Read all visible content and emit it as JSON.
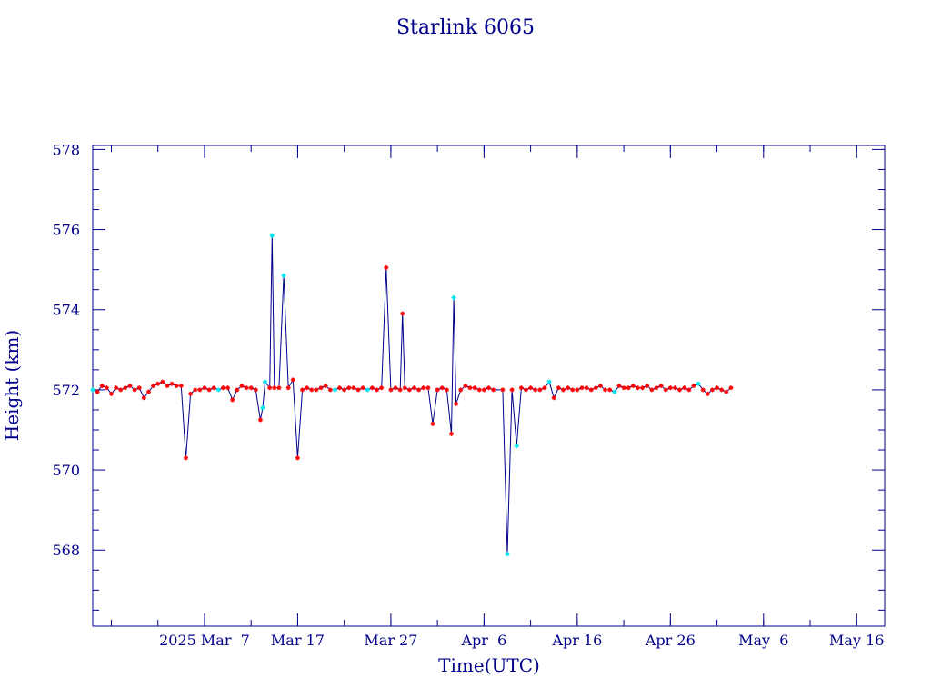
{
  "chart_data": {
    "type": "line",
    "title": "Starlink 6065",
    "xlabel": "Time(UTC)",
    "ylabel": "Height (km)",
    "x_is_days_offset": false,
    "x_ticks": [
      {
        "x": "2025-03-07",
        "label": "2025 Mar  7"
      },
      {
        "x": "2025-03-17",
        "label": "Mar 17"
      },
      {
        "x": "2025-03-27",
        "label": "Mar 27"
      },
      {
        "x": "2025-04-06",
        "label": "Apr  6"
      },
      {
        "x": "2025-04-16",
        "label": "Apr 16"
      },
      {
        "x": "2025-04-26",
        "label": "Apr 26"
      },
      {
        "x": "2025-05-06",
        "label": "May  6"
      },
      {
        "x": "2025-05-16",
        "label": "May 16"
      }
    ],
    "y_ticks": [
      568,
      570,
      572,
      574,
      576,
      578
    ],
    "xlim": [
      "2025-02-23",
      "2025-05-19"
    ],
    "ylim": [
      566.1,
      578.1
    ],
    "colors": {
      "axes": "#00008b",
      "line": "#00008b",
      "marker_red": "#ff0000",
      "marker_cyan": "#00e5ee"
    },
    "series": [
      {
        "values": [
          {
            "x": "2025-02-23T00:00",
            "y": 572.0,
            "m": "cyan"
          },
          {
            "x": "2025-02-23T12:00",
            "y": 571.95
          },
          {
            "x": "2025-02-24T00:00",
            "y": 572.1
          },
          {
            "x": "2025-02-24T12:00",
            "y": 572.05
          },
          {
            "x": "2025-02-25T00:00",
            "y": 571.9
          },
          {
            "x": "2025-02-25T12:00",
            "y": 572.05
          },
          {
            "x": "2025-02-26T00:00",
            "y": 572.0
          },
          {
            "x": "2025-02-26T12:00",
            "y": 572.05
          },
          {
            "x": "2025-02-27T00:00",
            "y": 572.1
          },
          {
            "x": "2025-02-27T12:00",
            "y": 572.0
          },
          {
            "x": "2025-02-28T00:00",
            "y": 572.05
          },
          {
            "x": "2025-02-28T12:00",
            "y": 571.8
          },
          {
            "x": "2025-03-01T00:00",
            "y": 571.95
          },
          {
            "x": "2025-03-01T12:00",
            "y": 572.1
          },
          {
            "x": "2025-03-02T00:00",
            "y": 572.15
          },
          {
            "x": "2025-03-02T12:00",
            "y": 572.2
          },
          {
            "x": "2025-03-03T00:00",
            "y": 572.1
          },
          {
            "x": "2025-03-03T12:00",
            "y": 572.15
          },
          {
            "x": "2025-03-04T00:00",
            "y": 572.1
          },
          {
            "x": "2025-03-04T12:00",
            "y": 572.1
          },
          {
            "x": "2025-03-05T00:00",
            "y": 570.3
          },
          {
            "x": "2025-03-05T12:00",
            "y": 571.9
          },
          {
            "x": "2025-03-06T00:00",
            "y": 572.0
          },
          {
            "x": "2025-03-06T12:00",
            "y": 572.0
          },
          {
            "x": "2025-03-07T00:00",
            "y": 572.05
          },
          {
            "x": "2025-03-07T12:00",
            "y": 572.0
          },
          {
            "x": "2025-03-08T00:00",
            "y": 572.05
          },
          {
            "x": "2025-03-08T12:00",
            "y": 572.0,
            "m": "cyan"
          },
          {
            "x": "2025-03-09T00:00",
            "y": 572.05
          },
          {
            "x": "2025-03-09T12:00",
            "y": 572.05
          },
          {
            "x": "2025-03-10T00:00",
            "y": 571.75
          },
          {
            "x": "2025-03-10T12:00",
            "y": 572.0
          },
          {
            "x": "2025-03-11T00:00",
            "y": 572.1
          },
          {
            "x": "2025-03-11T12:00",
            "y": 572.05
          },
          {
            "x": "2025-03-12T00:00",
            "y": 572.05
          },
          {
            "x": "2025-03-12T12:00",
            "y": 572.0
          },
          {
            "x": "2025-03-13T00:00",
            "y": 571.25
          },
          {
            "x": "2025-03-13T06:00",
            "y": 571.55,
            "m": "cyan"
          },
          {
            "x": "2025-03-13T12:00",
            "y": 572.2,
            "m": "cyan"
          },
          {
            "x": "2025-03-14T00:00",
            "y": 572.05
          },
          {
            "x": "2025-03-14T06:00",
            "y": 575.85,
            "m": "cyan"
          },
          {
            "x": "2025-03-14T12:00",
            "y": 572.05
          },
          {
            "x": "2025-03-15T00:00",
            "y": 572.05
          },
          {
            "x": "2025-03-15T12:00",
            "y": 574.85,
            "m": "cyan"
          },
          {
            "x": "2025-03-16T00:00",
            "y": 572.05
          },
          {
            "x": "2025-03-16T12:00",
            "y": 572.25
          },
          {
            "x": "2025-03-17T00:00",
            "y": 570.3
          },
          {
            "x": "2025-03-17T12:00",
            "y": 572.0
          },
          {
            "x": "2025-03-18T00:00",
            "y": 572.05
          },
          {
            "x": "2025-03-18T12:00",
            "y": 572.0
          },
          {
            "x": "2025-03-19T00:00",
            "y": 572.0
          },
          {
            "x": "2025-03-19T12:00",
            "y": 572.05
          },
          {
            "x": "2025-03-20T00:00",
            "y": 572.1
          },
          {
            "x": "2025-03-20T12:00",
            "y": 572.0
          },
          {
            "x": "2025-03-21T00:00",
            "y": 572.0,
            "m": "cyan"
          },
          {
            "x": "2025-03-21T12:00",
            "y": 572.05
          },
          {
            "x": "2025-03-22T00:00",
            "y": 572.0
          },
          {
            "x": "2025-03-22T12:00",
            "y": 572.05
          },
          {
            "x": "2025-03-23T00:00",
            "y": 572.05
          },
          {
            "x": "2025-03-23T12:00",
            "y": 572.0
          },
          {
            "x": "2025-03-24T00:00",
            "y": 572.05
          },
          {
            "x": "2025-03-24T12:00",
            "y": 572.0,
            "m": "cyan"
          },
          {
            "x": "2025-03-25T00:00",
            "y": 572.05
          },
          {
            "x": "2025-03-25T12:00",
            "y": 572.0
          },
          {
            "x": "2025-03-26T00:00",
            "y": 572.05
          },
          {
            "x": "2025-03-26T12:00",
            "y": 575.05
          },
          {
            "x": "2025-03-27T00:00",
            "y": 572.0
          },
          {
            "x": "2025-03-27T12:00",
            "y": 572.05
          },
          {
            "x": "2025-03-28T00:00",
            "y": 572.0
          },
          {
            "x": "2025-03-28T06:00",
            "y": 573.9
          },
          {
            "x": "2025-03-28T12:00",
            "y": 572.05
          },
          {
            "x": "2025-03-29T00:00",
            "y": 572.0
          },
          {
            "x": "2025-03-29T12:00",
            "y": 572.05
          },
          {
            "x": "2025-03-30T00:00",
            "y": 572.0
          },
          {
            "x": "2025-03-30T12:00",
            "y": 572.05
          },
          {
            "x": "2025-03-31T00:00",
            "y": 572.05
          },
          {
            "x": "2025-03-31T12:00",
            "y": 571.15
          },
          {
            "x": "2025-04-01T00:00",
            "y": 572.0
          },
          {
            "x": "2025-04-01T12:00",
            "y": 572.05
          },
          {
            "x": "2025-04-02T00:00",
            "y": 572.0
          },
          {
            "x": "2025-04-02T12:00",
            "y": 570.9
          },
          {
            "x": "2025-04-02T18:00",
            "y": 574.3,
            "m": "cyan"
          },
          {
            "x": "2025-04-03T00:00",
            "y": 571.65
          },
          {
            "x": "2025-04-03T12:00",
            "y": 572.0
          },
          {
            "x": "2025-04-04T00:00",
            "y": 572.1
          },
          {
            "x": "2025-04-04T12:00",
            "y": 572.05
          },
          {
            "x": "2025-04-05T00:00",
            "y": 572.05
          },
          {
            "x": "2025-04-05T12:00",
            "y": 572.0
          },
          {
            "x": "2025-04-06T00:00",
            "y": 572.0
          },
          {
            "x": "2025-04-06T12:00",
            "y": 572.05
          },
          {
            "x": "2025-04-07T00:00",
            "y": 572.0
          },
          {
            "x": "2025-04-08T00:00",
            "y": 572.0
          },
          {
            "x": "2025-04-08T12:00",
            "y": 567.9,
            "m": "cyan"
          },
          {
            "x": "2025-04-09T00:00",
            "y": 572.0
          },
          {
            "x": "2025-04-09T12:00",
            "y": 570.6,
            "m": "cyan"
          },
          {
            "x": "2025-04-10T00:00",
            "y": 572.05
          },
          {
            "x": "2025-04-10T12:00",
            "y": 572.0
          },
          {
            "x": "2025-04-11T00:00",
            "y": 572.05
          },
          {
            "x": "2025-04-11T12:00",
            "y": 572.0
          },
          {
            "x": "2025-04-12T00:00",
            "y": 572.0
          },
          {
            "x": "2025-04-12T12:00",
            "y": 572.05
          },
          {
            "x": "2025-04-13T00:00",
            "y": 572.2,
            "m": "cyan"
          },
          {
            "x": "2025-04-13T12:00",
            "y": 571.8
          },
          {
            "x": "2025-04-14T00:00",
            "y": 572.05
          },
          {
            "x": "2025-04-14T12:00",
            "y": 572.0
          },
          {
            "x": "2025-04-15T00:00",
            "y": 572.05
          },
          {
            "x": "2025-04-15T12:00",
            "y": 572.0
          },
          {
            "x": "2025-04-16T00:00",
            "y": 572.0
          },
          {
            "x": "2025-04-16T12:00",
            "y": 572.05
          },
          {
            "x": "2025-04-17T00:00",
            "y": 572.05
          },
          {
            "x": "2025-04-17T12:00",
            "y": 572.0
          },
          {
            "x": "2025-04-18T00:00",
            "y": 572.05
          },
          {
            "x": "2025-04-18T12:00",
            "y": 572.1
          },
          {
            "x": "2025-04-19T00:00",
            "y": 572.0
          },
          {
            "x": "2025-04-19T12:00",
            "y": 572.0
          },
          {
            "x": "2025-04-20T00:00",
            "y": 571.95,
            "m": "cyan"
          },
          {
            "x": "2025-04-20T12:00",
            "y": 572.1
          },
          {
            "x": "2025-04-21T00:00",
            "y": 572.05
          },
          {
            "x": "2025-04-21T12:00",
            "y": 572.05
          },
          {
            "x": "2025-04-22T00:00",
            "y": 572.1
          },
          {
            "x": "2025-04-22T12:00",
            "y": 572.05
          },
          {
            "x": "2025-04-23T00:00",
            "y": 572.05
          },
          {
            "x": "2025-04-23T12:00",
            "y": 572.1
          },
          {
            "x": "2025-04-24T00:00",
            "y": 572.0
          },
          {
            "x": "2025-04-24T12:00",
            "y": 572.05
          },
          {
            "x": "2025-04-25T00:00",
            "y": 572.1
          },
          {
            "x": "2025-04-25T12:00",
            "y": 572.0
          },
          {
            "x": "2025-04-26T00:00",
            "y": 572.05
          },
          {
            "x": "2025-04-26T12:00",
            "y": 572.05
          },
          {
            "x": "2025-04-27T00:00",
            "y": 572.0
          },
          {
            "x": "2025-04-27T12:00",
            "y": 572.05
          },
          {
            "x": "2025-04-28T00:00",
            "y": 572.0
          },
          {
            "x": "2025-04-28T12:00",
            "y": 572.1
          },
          {
            "x": "2025-04-29T00:00",
            "y": 572.15,
            "m": "cyan"
          },
          {
            "x": "2025-04-29T12:00",
            "y": 572.0
          },
          {
            "x": "2025-04-30T00:00",
            "y": 571.9
          },
          {
            "x": "2025-04-30T12:00",
            "y": 572.0
          },
          {
            "x": "2025-05-01T00:00",
            "y": 572.05
          },
          {
            "x": "2025-05-01T12:00",
            "y": 572.0
          },
          {
            "x": "2025-05-02T00:00",
            "y": 571.95
          },
          {
            "x": "2025-05-02T12:00",
            "y": 572.05
          }
        ]
      }
    ]
  }
}
